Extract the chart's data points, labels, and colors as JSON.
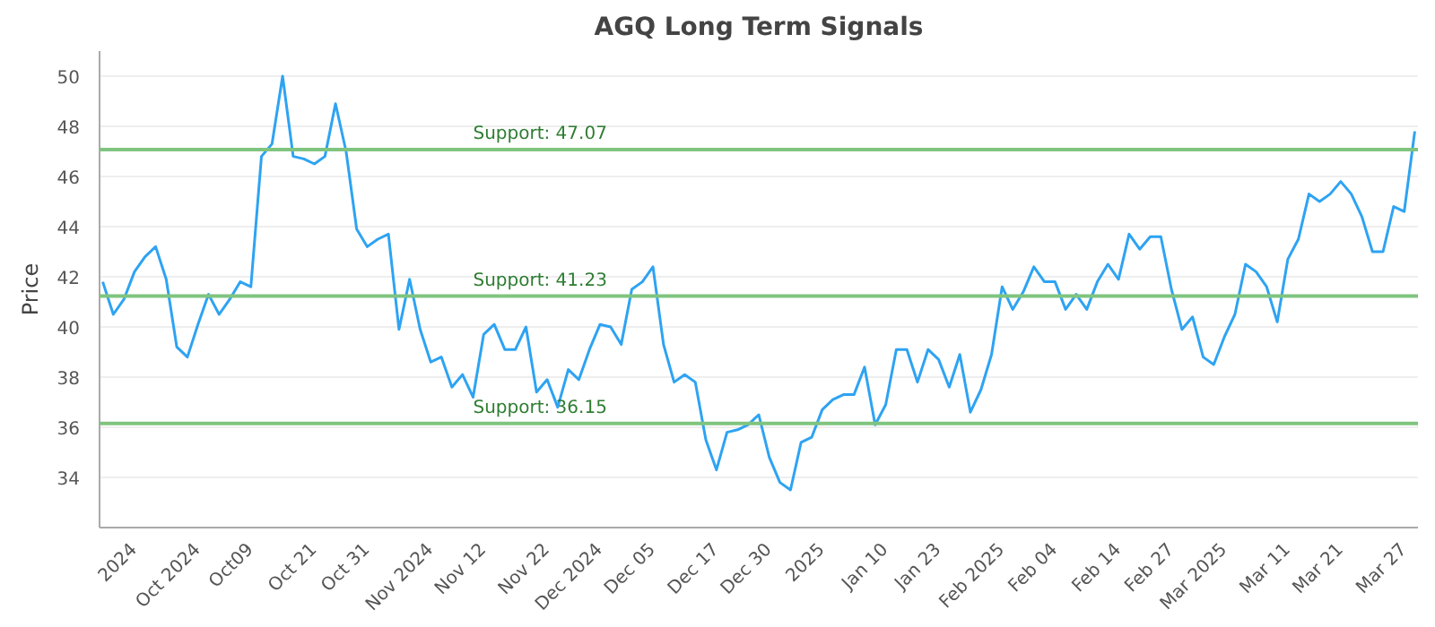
{
  "chart_data": {
    "type": "line",
    "title": "AGQ Long Term Signals",
    "ylabel": "Price",
    "categories": [
      null,
      null,
      null,
      "2024",
      null,
      null,
      null,
      null,
      null,
      "Oct 2024",
      null,
      null,
      null,
      null,
      "Oct09",
      null,
      null,
      null,
      null,
      null,
      "Oct 21",
      null,
      null,
      null,
      null,
      "Oct 31",
      null,
      null,
      null,
      null,
      null,
      "Nov 2024",
      null,
      null,
      null,
      null,
      "Nov 12",
      null,
      null,
      null,
      null,
      null,
      "Nov 22",
      null,
      null,
      null,
      null,
      "Dec 2024",
      null,
      null,
      null,
      null,
      "Dec 05",
      null,
      null,
      null,
      null,
      null,
      "Dec 17",
      null,
      null,
      null,
      null,
      "Dec 30",
      null,
      null,
      null,
      null,
      "2025",
      null,
      null,
      null,
      null,
      null,
      "Jan 10",
      null,
      null,
      null,
      null,
      "Jan 23",
      null,
      null,
      null,
      null,
      null,
      "Feb 2025",
      null,
      null,
      null,
      null,
      "Feb 04",
      null,
      null,
      null,
      null,
      null,
      "Feb 14",
      null,
      null,
      null,
      null,
      "Feb 27",
      null,
      null,
      null,
      null,
      "Mar 2025",
      null,
      null,
      null,
      null,
      null,
      "Mar 11",
      null,
      null,
      null,
      null,
      "Mar 21",
      null,
      null,
      null,
      null,
      null,
      "Mar 27",
      null
    ],
    "series": [
      {
        "color": "#2ea3f2",
        "values": [
          41.8,
          40.5,
          41.1,
          42.2,
          42.8,
          43.2,
          41.9,
          39.2,
          38.8,
          40.1,
          41.3,
          40.5,
          41.1,
          41.8,
          41.6,
          46.8,
          47.3,
          50.0,
          46.8,
          46.7,
          46.5,
          46.8,
          48.9,
          47.0,
          43.9,
          43.2,
          43.5,
          43.7,
          39.9,
          41.9,
          39.9,
          38.6,
          38.8,
          37.6,
          38.1,
          37.2,
          39.7,
          40.1,
          39.1,
          39.1,
          40.0,
          37.4,
          37.9,
          36.8,
          38.3,
          37.9,
          39.1,
          40.1,
          40.0,
          39.3,
          41.5,
          41.8,
          42.4,
          39.3,
          37.8,
          38.1,
          37.8,
          35.5,
          34.3,
          35.8,
          35.9,
          36.1,
          36.5,
          34.8,
          33.8,
          33.5,
          35.4,
          35.6,
          36.7,
          37.1,
          37.3,
          37.3,
          38.4,
          36.1,
          36.9,
          39.1,
          39.1,
          37.8,
          39.1,
          38.7,
          37.6,
          38.9,
          36.6,
          37.5,
          38.9,
          41.6,
          40.7,
          41.4,
          42.4,
          41.8,
          41.8,
          40.7,
          41.3,
          40.7,
          41.8,
          42.5,
          41.9,
          43.7,
          43.1,
          43.6,
          43.6,
          41.5,
          39.9,
          40.4,
          38.8,
          38.5,
          39.6,
          40.5,
          42.5,
          42.2,
          41.6,
          40.2,
          42.7,
          43.5,
          45.3,
          45.0,
          45.3,
          45.8,
          45.3,
          44.4,
          43.0,
          43.0,
          44.8,
          44.6,
          47.8
        ]
      }
    ],
    "ylim": [
      32,
      51
    ],
    "yticks": [
      34,
      36,
      38,
      40,
      42,
      44,
      46,
      48,
      50
    ],
    "grid": "y",
    "ref_lines": [
      {
        "axis": "y",
        "value": 47.07,
        "label": "Support: 47.07",
        "color": "#7fc47f"
      },
      {
        "axis": "y",
        "value": 41.23,
        "label": "Support: 41.23",
        "color": "#7fc47f"
      },
      {
        "axis": "y",
        "value": 36.15,
        "label": "Support: 36.15",
        "color": "#7fc47f"
      }
    ]
  }
}
